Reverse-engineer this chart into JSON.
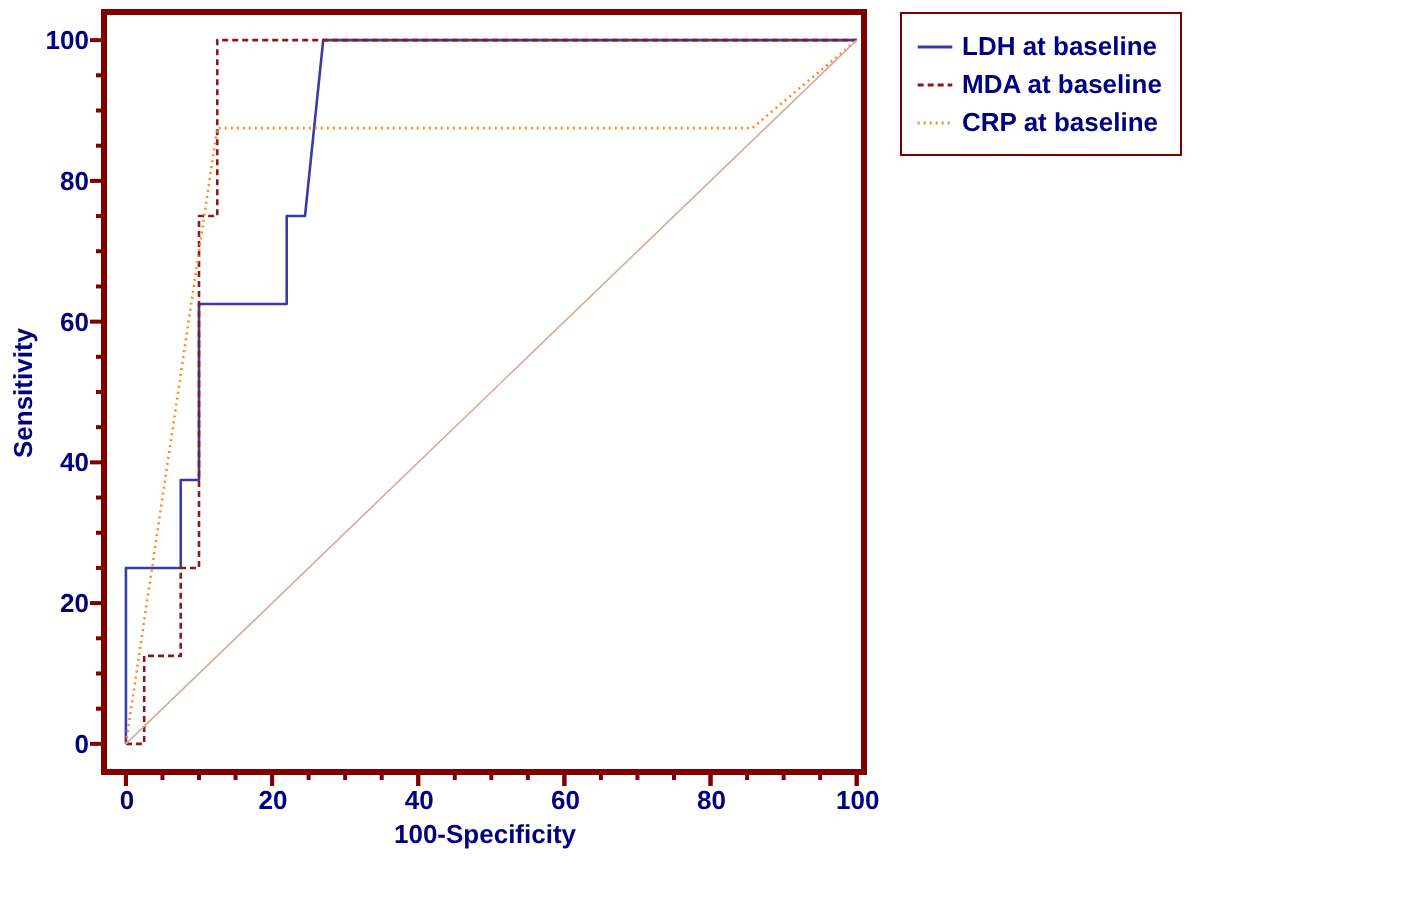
{
  "chart_data": {
    "type": "line",
    "xlabel": "100-Specificity",
    "ylabel": "Sensitivity",
    "xlim": [
      -3,
      101
    ],
    "ylim": [
      -4,
      104
    ],
    "xticks": [
      0,
      {
        "value": 5,
        "label": null
      },
      {
        "value": 10,
        "label": null
      },
      {
        "value": 15,
        "label": null
      },
      20,
      {
        "value": 25,
        "label": null
      },
      {
        "value": 30,
        "label": null
      },
      {
        "value": 35,
        "label": null
      },
      40,
      {
        "value": 45,
        "label": null
      },
      {
        "value": 50,
        "label": null
      },
      {
        "value": 55,
        "label": null
      },
      60,
      {
        "value": 65,
        "label": null
      },
      {
        "value": 70,
        "label": null
      },
      {
        "value": 75,
        "label": null
      },
      80,
      {
        "value": 85,
        "label": null
      },
      {
        "value": 90,
        "label": null
      },
      {
        "value": 95,
        "label": null
      },
      100
    ],
    "yticks": [
      0,
      {
        "value": 5,
        "label": null
      },
      {
        "value": 10,
        "label": null
      },
      {
        "value": 15,
        "label": null
      },
      20,
      {
        "value": 25,
        "label": null
      },
      {
        "value": 30,
        "label": null
      },
      {
        "value": 35,
        "label": null
      },
      40,
      {
        "value": 45,
        "label": null
      },
      {
        "value": 50,
        "label": null
      },
      {
        "value": 55,
        "label": null
      },
      60,
      {
        "value": 65,
        "label": null
      },
      {
        "value": 70,
        "label": null
      },
      {
        "value": 75,
        "label": null
      },
      80,
      {
        "value": 85,
        "label": null
      },
      {
        "value": 90,
        "label": null
      },
      {
        "value": 95,
        "label": null
      },
      100
    ],
    "grid": false,
    "legend": "right",
    "marker": "none",
    "series": [
      {
        "name": "LDH at baseline",
        "color": "#3a3aa8",
        "line_style": "solid",
        "x": [
          0,
          0,
          7.5,
          7.5,
          10,
          10,
          22,
          22,
          24.5,
          27,
          100
        ],
        "values": [
          0,
          25,
          25,
          37.5,
          37.5,
          62.5,
          62.5,
          75,
          75,
          100,
          100
        ]
      },
      {
        "name": "MDA at baseline",
        "color": "#8b1a1a",
        "line_style": "dashed",
        "x": [
          0,
          2.5,
          2.5,
          7.5,
          7.5,
          10,
          10,
          12.5,
          12.5,
          100
        ],
        "values": [
          0,
          0,
          12.5,
          12.5,
          25,
          25,
          75,
          75,
          100,
          100
        ]
      },
      {
        "name": "CRP at baseline",
        "color": "#ff8c1a",
        "line_style": "dotted",
        "x": [
          0,
          12.5,
          85.7,
          100
        ],
        "values": [
          0,
          87.5,
          87.5,
          100
        ]
      },
      {
        "color": "#d9a89c",
        "line_style": "solid",
        "x": [
          0,
          100
        ],
        "values": [
          0,
          100
        ]
      }
    ]
  }
}
